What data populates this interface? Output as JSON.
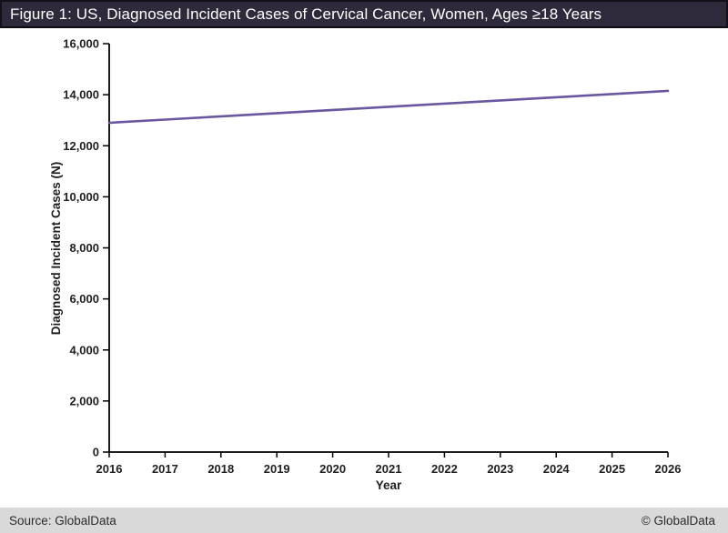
{
  "header": {
    "title": "Figure 1: US, Diagnosed Incident Cases of Cervical Cancer, Women, Ages ≥18 Years"
  },
  "footer": {
    "source": "Source: GlobalData",
    "copyright": "© GlobalData"
  },
  "colors": {
    "title_bar_bg": "#2e2a3b",
    "line_color": "#6b579f",
    "axis_color": "#000000",
    "footer_bg": "#d9d9d9"
  },
  "chart_data": {
    "type": "line",
    "title": "Figure 1: US, Diagnosed Incident Cases of Cervical Cancer, Women, Ages ≥18 Years",
    "xlabel": "Year",
    "ylabel": "Diagnosed Incident Cases (N)",
    "categories": [
      "2016",
      "2017",
      "2018",
      "2019",
      "2020",
      "2021",
      "2022",
      "2023",
      "2024",
      "2025",
      "2026"
    ],
    "series": [
      {
        "name": "Diagnosed Incident Cases",
        "values": [
          12900,
          13025,
          13150,
          13275,
          13400,
          13525,
          13650,
          13775,
          13900,
          14025,
          14150
        ]
      }
    ],
    "ylim": [
      0,
      16000
    ],
    "ytick_step": 2000,
    "grid": false,
    "legend": "none"
  }
}
